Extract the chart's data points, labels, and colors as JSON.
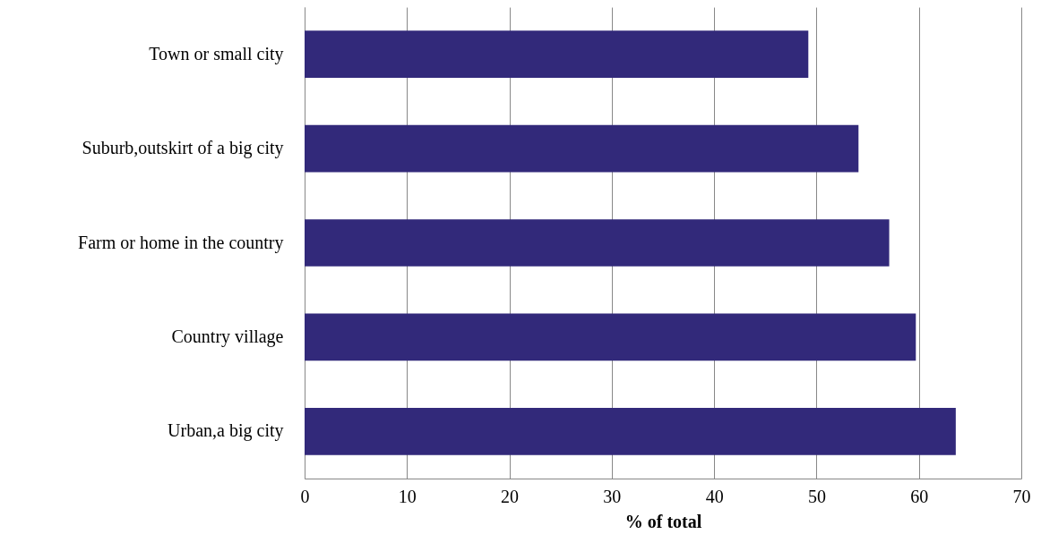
{
  "chart_data": {
    "type": "bar",
    "orientation": "horizontal",
    "xlabel": "% of total",
    "categories": [
      "Town or small city",
      "Suburb,outskirt of a big city",
      "Farm or home in the country",
      "Country village",
      "Urban,a big city"
    ],
    "values": [
      49.2,
      54.1,
      57.1,
      59.7,
      63.6
    ],
    "color": "#32297a",
    "xlim": [
      0,
      70
    ],
    "xticks": [
      0,
      10,
      20,
      30,
      40,
      50,
      60,
      70
    ],
    "grid": "x"
  }
}
